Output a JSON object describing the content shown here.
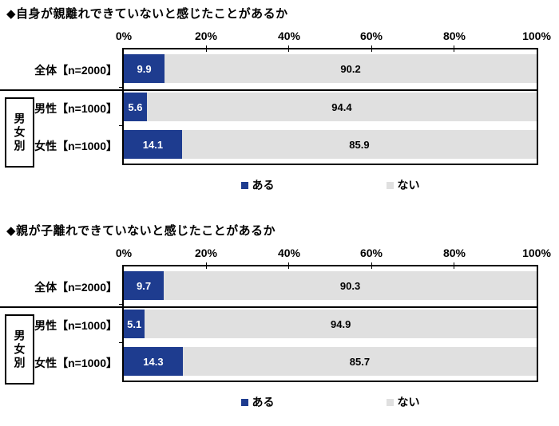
{
  "chart_data": [
    {
      "type": "bar",
      "orientation": "horizontal",
      "stacked": true,
      "title": "◆自身が親離れできていないと感じたことがあるか",
      "categories": [
        "全体【n=2000】",
        "男性【n=1000】",
        "女性【n=1000】"
      ],
      "group_label": "男女別",
      "group_rows": [
        1,
        2
      ],
      "series": [
        {
          "name": "ある",
          "color": "#1e3c8f",
          "values": [
            9.9,
            5.6,
            14.1
          ]
        },
        {
          "name": "ない",
          "color": "#e0e0e0",
          "values": [
            90.2,
            94.4,
            85.9
          ]
        }
      ],
      "x_ticks": [
        "0%",
        "20%",
        "40%",
        "60%",
        "80%",
        "100%"
      ],
      "xlim": [
        0,
        100
      ],
      "grid": false,
      "legend_position": "bottom",
      "value_label_color_aru": "#ffffff",
      "value_label_color_nai": "#000000"
    },
    {
      "type": "bar",
      "orientation": "horizontal",
      "stacked": true,
      "title": "◆親が子離れできていないと感じたことがあるか",
      "categories": [
        "全体【n=2000】",
        "男性【n=1000】",
        "女性【n=1000】"
      ],
      "group_label": "男女別",
      "group_rows": [
        1,
        2
      ],
      "series": [
        {
          "name": "ある",
          "color": "#1e3c8f",
          "values": [
            9.7,
            5.1,
            14.3
          ]
        },
        {
          "name": "ない",
          "color": "#e0e0e0",
          "values": [
            90.3,
            94.9,
            85.7
          ]
        }
      ],
      "x_ticks": [
        "0%",
        "20%",
        "40%",
        "60%",
        "80%",
        "100%"
      ],
      "xlim": [
        0,
        100
      ],
      "grid": false,
      "legend_position": "bottom",
      "value_label_color_aru": "#ffffff",
      "value_label_color_nai": "#000000"
    }
  ]
}
